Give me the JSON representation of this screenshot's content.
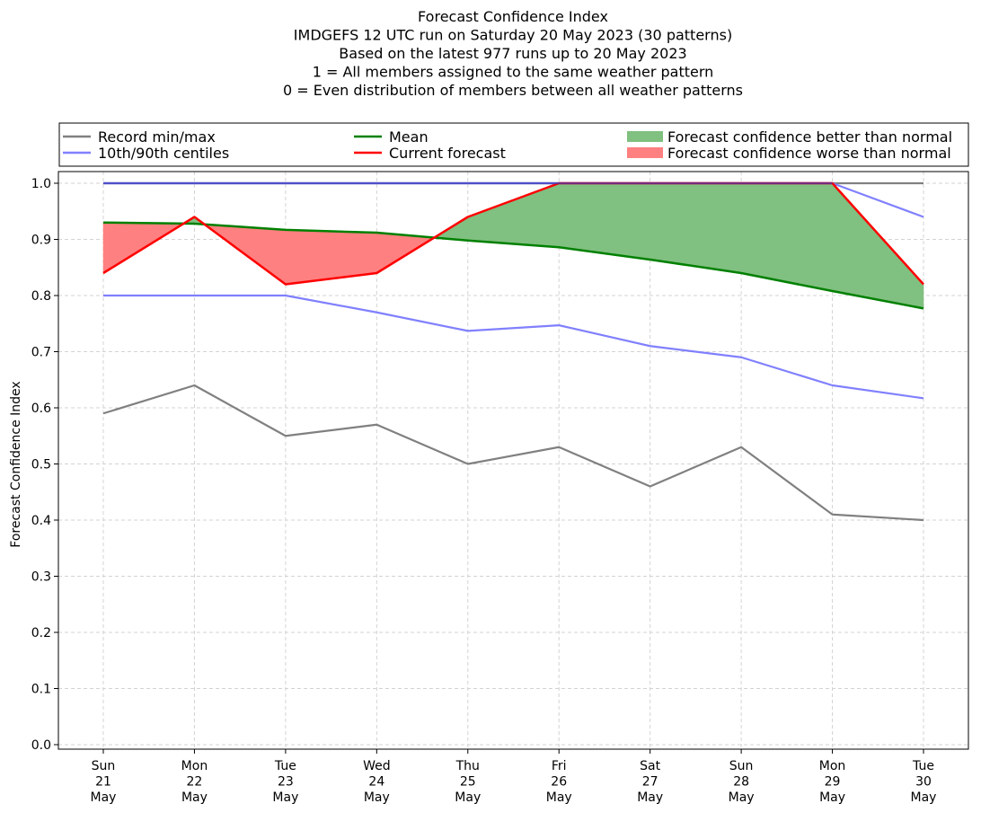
{
  "chart_data": {
    "type": "line",
    "title_lines": [
      "Forecast Confidence Index",
      "IMDGEFS 12 UTC run on Saturday 20 May 2023 (30 patterns)",
      "Based on the latest 977 runs up to 20 May 2023",
      "1 = All members assigned to the same weather pattern",
      "0 = Even distribution of members between all weather patterns"
    ],
    "ylabel": "Forecast Confidence Index",
    "xlabel": "",
    "ylim": [
      0.0,
      1.0
    ],
    "yticks": [
      "0.0",
      "0.1",
      "0.2",
      "0.3",
      "0.4",
      "0.5",
      "0.6",
      "0.7",
      "0.8",
      "0.9",
      "1.0"
    ],
    "categories": [
      [
        "Sun",
        "21",
        "May"
      ],
      [
        "Mon",
        "22",
        "May"
      ],
      [
        "Tue",
        "23",
        "May"
      ],
      [
        "Wed",
        "24",
        "May"
      ],
      [
        "Thu",
        "25",
        "May"
      ],
      [
        "Fri",
        "26",
        "May"
      ],
      [
        "Sat",
        "27",
        "May"
      ],
      [
        "Sun",
        "28",
        "May"
      ],
      [
        "Mon",
        "29",
        "May"
      ],
      [
        "Tue",
        "30",
        "May"
      ]
    ],
    "grid": true,
    "legend_placement": "top, above plot",
    "series": [
      {
        "name": "Record min/max",
        "role": "record_min",
        "color": "#808080",
        "values": [
          0.59,
          0.64,
          0.55,
          0.57,
          0.5,
          0.53,
          0.46,
          0.53,
          0.41,
          0.4
        ]
      },
      {
        "name": "Record min/max",
        "role": "record_max",
        "color": "#808080",
        "values": [
          1.0,
          1.0,
          1.0,
          1.0,
          1.0,
          1.0,
          1.0,
          1.0,
          1.0,
          1.0
        ]
      },
      {
        "name": "10th/90th centiles",
        "role": "p10",
        "color": "#8080ff",
        "values": [
          0.8,
          0.8,
          0.8,
          0.77,
          0.737,
          0.747,
          0.71,
          0.69,
          0.64,
          0.617
        ]
      },
      {
        "name": "10th/90th centiles",
        "role": "p90",
        "color": "#8080ff",
        "values": [
          1.0,
          1.0,
          1.0,
          1.0,
          1.0,
          1.0,
          1.0,
          1.0,
          1.0,
          0.94
        ]
      },
      {
        "name": "Mean",
        "role": "mean",
        "color": "#008000",
        "values": [
          0.93,
          0.928,
          0.917,
          0.912,
          0.898,
          0.886,
          0.864,
          0.84,
          0.808,
          0.777
        ]
      },
      {
        "name": "Current forecast",
        "role": "current",
        "color": "#ff0000",
        "values": [
          0.84,
          0.94,
          0.82,
          0.84,
          0.94,
          1.0,
          1.0,
          1.0,
          1.0,
          0.82
        ]
      }
    ],
    "legend": [
      {
        "label": "Record min/max",
        "kind": "line",
        "color": "#808080"
      },
      {
        "label": "10th/90th centiles",
        "kind": "line",
        "color": "#8080ff"
      },
      {
        "label": "Mean",
        "kind": "line",
        "color": "#008000"
      },
      {
        "label": "Current forecast",
        "kind": "line",
        "color": "#ff0000"
      },
      {
        "label": "Forecast confidence better than normal",
        "kind": "patch",
        "color": "#80c080"
      },
      {
        "label": "Forecast confidence worse than normal",
        "kind": "patch",
        "color": "#ff8080"
      }
    ],
    "fill_better_color": "#80c080",
    "fill_worse_color": "#ff8080"
  }
}
